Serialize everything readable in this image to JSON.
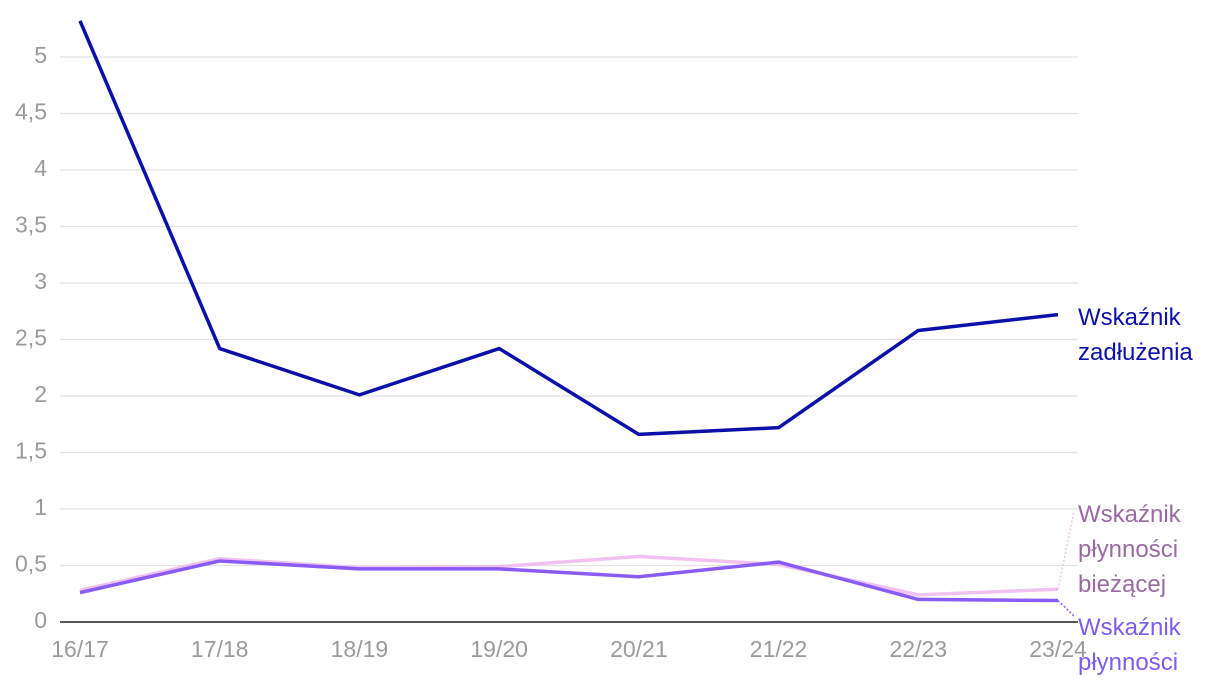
{
  "chart_data": {
    "type": "line",
    "categories": [
      "16/17",
      "17/18",
      "18/19",
      "19/20",
      "20/21",
      "21/22",
      "22/23",
      "23/24"
    ],
    "series": [
      {
        "name": "Wskaźnik zadłużenia",
        "color": "#0a10a8",
        "values": [
          5.32,
          2.42,
          2.01,
          2.42,
          1.66,
          1.72,
          2.58,
          2.72
        ]
      },
      {
        "name": "Wskaźnik płynności bieżącej",
        "color": "#f0c2f2",
        "label_color": "#9a6aa2",
        "values": [
          0.28,
          0.56,
          0.48,
          0.49,
          0.58,
          0.51,
          0.24,
          0.29
        ]
      },
      {
        "name": "Wskaźnik płynności",
        "color": "#8a5cf6",
        "label_color": "#7b5cf0",
        "values": [
          0.26,
          0.54,
          0.47,
          0.47,
          0.4,
          0.53,
          0.2,
          0.19
        ]
      }
    ],
    "ylim": [
      0,
      5.5
    ],
    "yticks": [
      0,
      {
        "value": 0.5,
        "label": "0,5"
      },
      1,
      {
        "value": 1.5,
        "label": "1,5"
      },
      2,
      {
        "value": 2.5,
        "label": "2,5"
      },
      3,
      {
        "value": 3.5,
        "label": "3,5"
      },
      4,
      {
        "value": 4.5,
        "label": "4,5"
      },
      5
    ],
    "grid": true
  }
}
